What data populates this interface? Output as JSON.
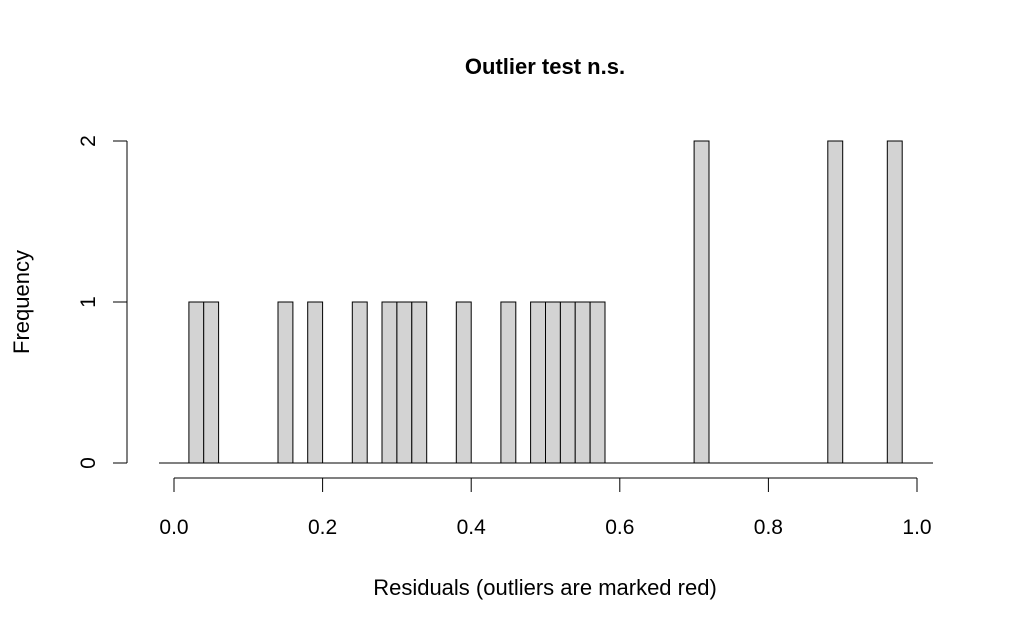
{
  "chart_data": {
    "type": "bar",
    "title": "Outlier test n.s.",
    "xlabel": "Residuals (outliers are marked red)",
    "ylabel": "Frequency",
    "xlim": [
      0,
      1
    ],
    "ylim": [
      0,
      2
    ],
    "xticks": [
      0.0,
      0.2,
      0.4,
      0.6,
      0.8,
      1.0
    ],
    "xtick_labels": [
      "0.0",
      "0.2",
      "0.4",
      "0.6",
      "0.8",
      "1.0"
    ],
    "yticks": [
      0,
      1,
      2
    ],
    "ytick_labels": [
      "0",
      "1",
      "2"
    ],
    "bin_width": 0.02,
    "bin_range": [
      0,
      1
    ],
    "bins": [
      {
        "start": 0.02,
        "end": 0.04,
        "count": 1
      },
      {
        "start": 0.04,
        "end": 0.06,
        "count": 1
      },
      {
        "start": 0.14,
        "end": 0.16,
        "count": 1
      },
      {
        "start": 0.18,
        "end": 0.2,
        "count": 1
      },
      {
        "start": 0.24,
        "end": 0.26,
        "count": 1
      },
      {
        "start": 0.28,
        "end": 0.3,
        "count": 1
      },
      {
        "start": 0.3,
        "end": 0.32,
        "count": 1
      },
      {
        "start": 0.32,
        "end": 0.34,
        "count": 1
      },
      {
        "start": 0.38,
        "end": 0.4,
        "count": 1
      },
      {
        "start": 0.44,
        "end": 0.46,
        "count": 1
      },
      {
        "start": 0.48,
        "end": 0.5,
        "count": 1
      },
      {
        "start": 0.5,
        "end": 0.52,
        "count": 1
      },
      {
        "start": 0.52,
        "end": 0.54,
        "count": 1
      },
      {
        "start": 0.54,
        "end": 0.56,
        "count": 1
      },
      {
        "start": 0.56,
        "end": 0.58,
        "count": 1
      },
      {
        "start": 0.7,
        "end": 0.72,
        "count": 2
      },
      {
        "start": 0.88,
        "end": 0.9,
        "count": 2
      },
      {
        "start": 0.96,
        "end": 0.98,
        "count": 2
      }
    ],
    "bar_color": "#d3d3d3",
    "bar_border_color": "#000000",
    "grid": false,
    "legend": "none"
  }
}
